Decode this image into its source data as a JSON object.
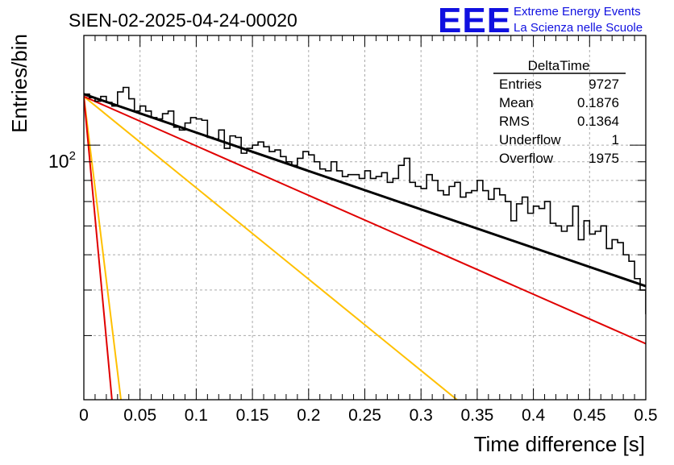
{
  "chart_data": {
    "type": "line",
    "title": "SIEN-02-2025-04-24-00020",
    "xlabel": "Time difference [s]",
    "ylabel": "Entries/bin",
    "xlim": [
      0,
      0.5
    ],
    "ylim": [
      20,
      200
    ],
    "yscale": "log",
    "grid": true,
    "x_ticks": [
      0,
      0.05,
      0.1,
      0.15,
      0.2,
      0.25,
      0.3,
      0.35,
      0.4,
      0.45,
      0.5
    ],
    "x_tick_labels": [
      "0",
      "0.05",
      "0.1",
      "0.15",
      "0.2",
      "0.25",
      "0.3",
      "0.35",
      "0.4",
      "0.45",
      "0.5"
    ],
    "y_major_label": {
      "base": "10",
      "exponent": "2",
      "value": 100
    },
    "histogram": {
      "name": "DeltaTime",
      "bin_width": 0.005,
      "values": [
        138,
        135,
        132,
        136,
        131,
        128,
        140,
        144,
        134,
        124,
        128,
        124,
        119,
        118,
        122,
        124,
        112,
        110,
        115,
        119,
        118,
        117,
        105,
        104,
        110,
        98,
        106,
        105,
        95,
        98,
        100,
        102,
        99,
        96,
        97,
        93,
        90,
        88,
        92,
        96,
        94,
        90,
        86,
        85,
        90,
        85,
        82,
        83,
        83,
        81,
        85,
        81,
        82,
        84,
        79,
        81,
        88,
        92,
        79,
        77,
        76,
        83,
        80,
        75,
        73,
        77,
        79,
        72,
        74,
        75,
        80,
        75,
        71,
        76,
        73,
        70,
        62,
        69,
        72,
        65,
        68,
        67,
        70,
        61,
        60,
        58,
        60,
        68,
        55,
        62,
        57,
        58,
        60,
        52,
        55,
        54,
        50,
        48,
        43,
        40
      ]
    },
    "fit_lines": [
      {
        "color": "#000000",
        "x": [
          0,
          0.5
        ],
        "y": [
          138,
          41
        ]
      },
      {
        "color": "#e00000",
        "x": [
          0,
          0.5
        ],
        "y": [
          136,
          28.5
        ]
      },
      {
        "color": "#e00000",
        "x": [
          0,
          0.025
        ],
        "y": [
          136,
          20
        ]
      },
      {
        "color": "#ffc000",
        "x": [
          0,
          0.033
        ],
        "y": [
          136,
          20
        ]
      },
      {
        "color": "#ffc000",
        "x": [
          0,
          0.332
        ],
        "y": [
          136,
          20
        ]
      }
    ],
    "stats_box": {
      "title": "DeltaTime",
      "rows": [
        {
          "label": "Entries",
          "value": "9727"
        },
        {
          "label": "Mean",
          "value": "0.1876"
        },
        {
          "label": "RMS",
          "value": "0.1364"
        },
        {
          "label": "Underflow",
          "value": "1"
        },
        {
          "label": "Overflow",
          "value": "1975"
        }
      ]
    },
    "logo": {
      "mark": "EEE",
      "line1": "Extreme Energy Events",
      "line2": "La Scienza nelle Scuole",
      "color": "#1010e0"
    }
  }
}
